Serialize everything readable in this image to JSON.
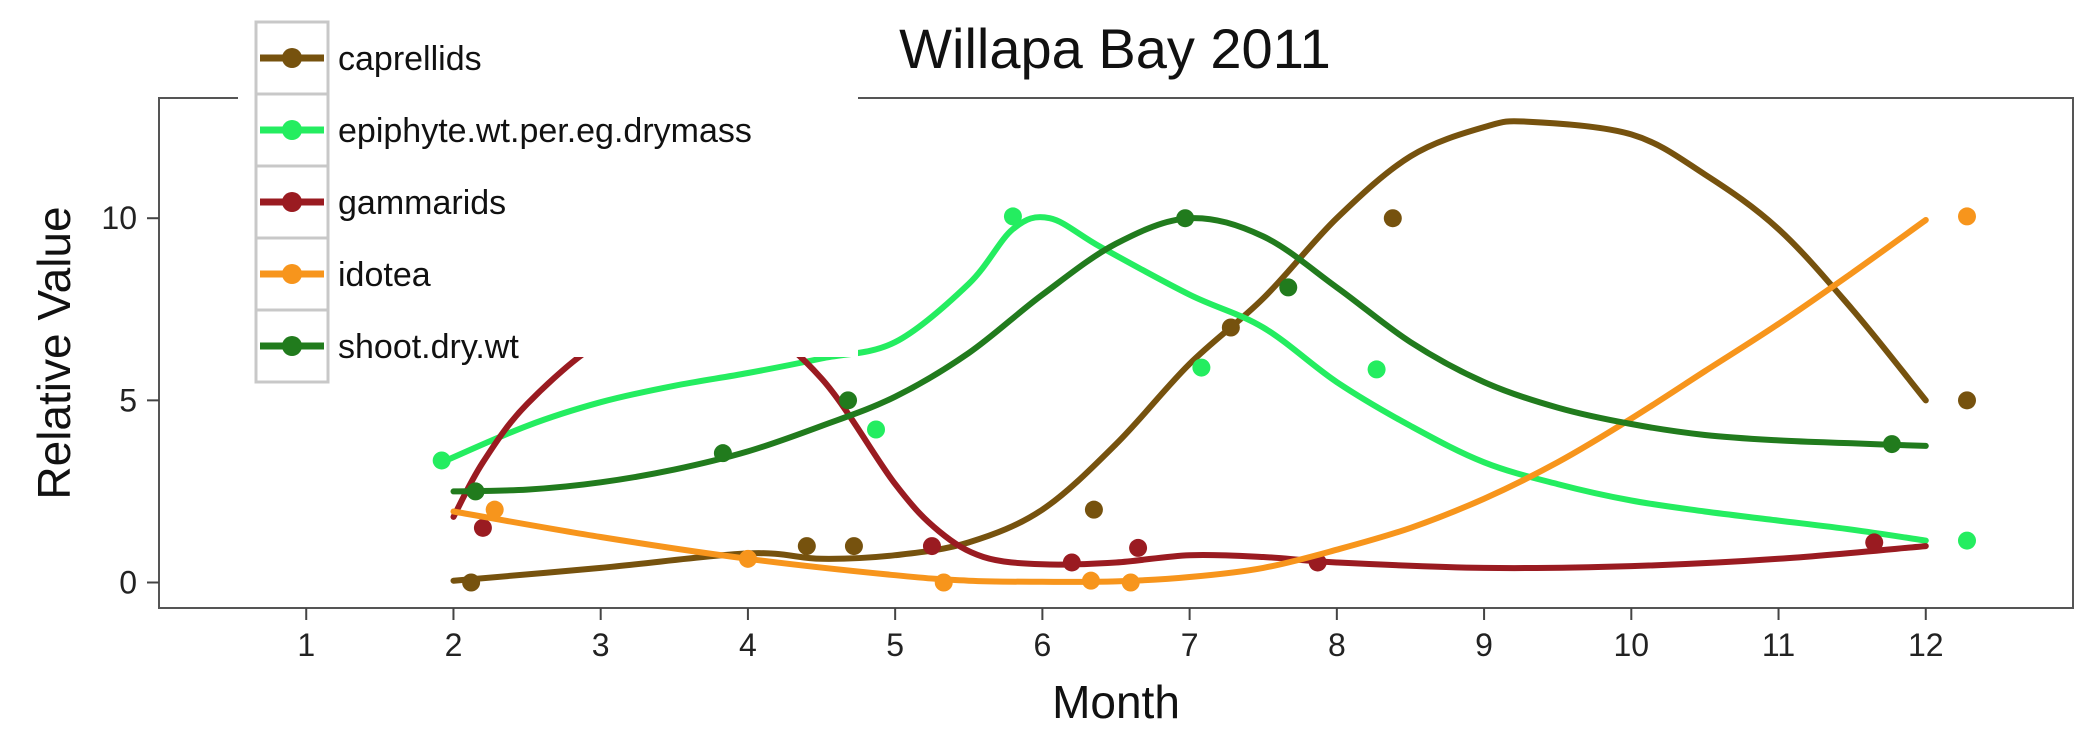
{
  "chart_data": {
    "type": "scatter",
    "title": "Willapa Bay 2011",
    "xlabel": "Month",
    "ylabel": "Relative Value",
    "xlim": [
      0,
      13
    ],
    "ylim": [
      -0.7,
      13.3
    ],
    "xticks": [
      1,
      2,
      3,
      4,
      5,
      6,
      7,
      8,
      9,
      10,
      11,
      12
    ],
    "yticks": [
      0,
      5,
      10
    ],
    "grid": false,
    "legend_position": "top-left",
    "series": [
      {
        "name": "caprellids",
        "color": "#76520e",
        "points": [
          [
            2.12,
            0
          ],
          [
            4.4,
            1
          ],
          [
            4.72,
            1
          ],
          [
            6.35,
            2
          ],
          [
            7.28,
            7
          ],
          [
            8.38,
            10
          ],
          [
            12.28,
            5
          ]
        ],
        "smooth": [
          [
            2,
            0.05
          ],
          [
            3,
            0.4
          ],
          [
            4,
            0.8
          ],
          [
            4.5,
            0.65
          ],
          [
            5,
            0.75
          ],
          [
            5.5,
            1.1
          ],
          [
            6,
            2
          ],
          [
            6.5,
            3.8
          ],
          [
            7,
            6
          ],
          [
            7.5,
            7.8
          ],
          [
            8,
            10
          ],
          [
            8.5,
            11.7
          ],
          [
            9,
            12.5
          ],
          [
            9.3,
            12.65
          ],
          [
            10,
            12.3
          ],
          [
            10.5,
            11.2
          ],
          [
            11,
            9.7
          ],
          [
            11.5,
            7.5
          ],
          [
            12,
            5
          ]
        ]
      },
      {
        "name": "epiphyte.wt.per.eg.drymass",
        "color": "#24ed60",
        "points": [
          [
            1.92,
            3.35
          ],
          [
            4.87,
            4.2
          ],
          [
            5.8,
            10.05
          ],
          [
            7.08,
            5.9
          ],
          [
            8.27,
            5.85
          ],
          [
            12.28,
            1.15
          ]
        ],
        "smooth": [
          [
            1.95,
            3.35
          ],
          [
            2.5,
            4.3
          ],
          [
            3,
            4.95
          ],
          [
            3.5,
            5.4
          ],
          [
            4,
            5.75
          ],
          [
            4.5,
            6.15
          ],
          [
            5,
            6.6
          ],
          [
            5.5,
            8.2
          ],
          [
            5.8,
            9.7
          ],
          [
            6.05,
            10.0
          ],
          [
            6.4,
            9.2
          ],
          [
            7,
            7.9
          ],
          [
            7.5,
            7
          ],
          [
            8,
            5.5
          ],
          [
            8.5,
            4.3
          ],
          [
            9,
            3.3
          ],
          [
            9.5,
            2.7
          ],
          [
            10,
            2.25
          ],
          [
            10.5,
            1.95
          ],
          [
            11,
            1.7
          ],
          [
            11.5,
            1.45
          ],
          [
            12,
            1.15
          ]
        ]
      },
      {
        "name": "gammarids",
        "color": "#9a1b21",
        "points": [
          [
            2.2,
            1.5
          ],
          [
            5.25,
            1
          ],
          [
            6.2,
            0.55
          ],
          [
            6.65,
            0.95
          ],
          [
            7.87,
            0.55
          ],
          [
            11.65,
            1.1
          ]
        ],
        "smooth": [
          [
            2,
            1.8
          ],
          [
            2.2,
            3.3
          ],
          [
            2.5,
            4.9
          ],
          [
            3,
            6.6
          ],
          [
            3.5,
            7.3
          ],
          [
            4,
            7.2
          ],
          [
            4.5,
            5.6
          ],
          [
            5,
            2.7
          ],
          [
            5.3,
            1.4
          ],
          [
            5.6,
            0.7
          ],
          [
            6,
            0.5
          ],
          [
            6.5,
            0.55
          ],
          [
            7,
            0.75
          ],
          [
            7.5,
            0.7
          ],
          [
            8,
            0.55
          ],
          [
            9,
            0.4
          ],
          [
            10,
            0.45
          ],
          [
            11,
            0.65
          ],
          [
            12,
            1
          ]
        ]
      },
      {
        "name": "idotea",
        "color": "#f7951c",
        "points": [
          [
            2.28,
            2
          ],
          [
            4,
            0.65
          ],
          [
            5.33,
            0
          ],
          [
            6.33,
            0.05
          ],
          [
            6.6,
            0
          ],
          [
            12.28,
            10.05
          ]
        ],
        "smooth": [
          [
            2,
            1.95
          ],
          [
            3,
            1.25
          ],
          [
            4,
            0.65
          ],
          [
            5,
            0.2
          ],
          [
            5.5,
            0.05
          ],
          [
            6,
            0.02
          ],
          [
            6.5,
            0.03
          ],
          [
            7,
            0.15
          ],
          [
            7.5,
            0.4
          ],
          [
            8,
            0.9
          ],
          [
            8.5,
            1.5
          ],
          [
            9,
            2.3
          ],
          [
            9.5,
            3.3
          ],
          [
            10,
            4.5
          ],
          [
            10.5,
            5.8
          ],
          [
            11,
            7.1
          ],
          [
            11.5,
            8.5
          ],
          [
            12,
            9.95
          ]
        ]
      },
      {
        "name": "shoot.dry.wt",
        "color": "#217b1d",
        "points": [
          [
            2.15,
            2.5
          ],
          [
            3.83,
            3.55
          ],
          [
            4.68,
            5
          ],
          [
            6.97,
            10
          ],
          [
            7.67,
            8.1
          ],
          [
            11.77,
            3.8
          ]
        ],
        "smooth": [
          [
            2,
            2.5
          ],
          [
            2.5,
            2.55
          ],
          [
            3,
            2.75
          ],
          [
            3.5,
            3.1
          ],
          [
            4,
            3.6
          ],
          [
            4.5,
            4.3
          ],
          [
            5,
            5.1
          ],
          [
            5.5,
            6.3
          ],
          [
            6,
            7.9
          ],
          [
            6.5,
            9.3
          ],
          [
            7,
            10
          ],
          [
            7.5,
            9.5
          ],
          [
            8,
            8.1
          ],
          [
            8.5,
            6.6
          ],
          [
            9,
            5.5
          ],
          [
            9.5,
            4.8
          ],
          [
            10,
            4.35
          ],
          [
            10.5,
            4.05
          ],
          [
            11,
            3.9
          ],
          [
            11.5,
            3.82
          ],
          [
            12,
            3.75
          ]
        ]
      }
    ]
  }
}
